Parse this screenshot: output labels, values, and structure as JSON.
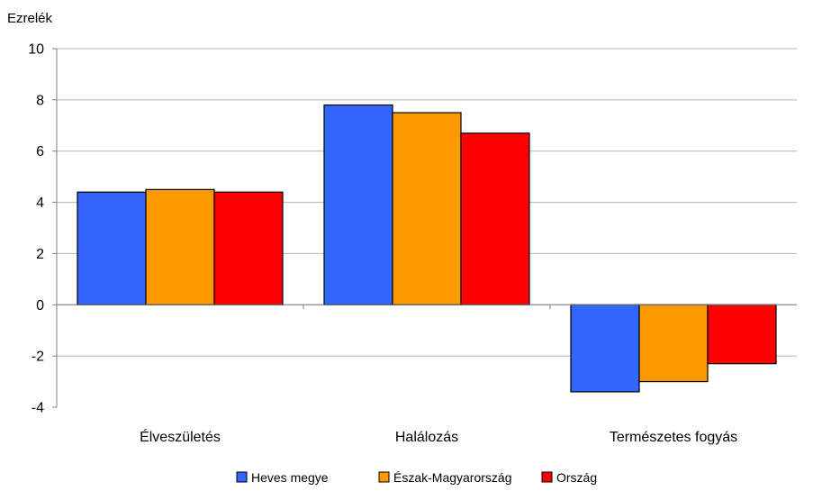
{
  "chart_data": {
    "type": "bar",
    "title": "",
    "xlabel": "",
    "ylabel": "Ezrelék",
    "ylim": [
      -4,
      10
    ],
    "yticks": [
      10,
      8,
      6,
      4,
      2,
      0,
      -2,
      -4
    ],
    "grid": true,
    "legend_position": "bottom",
    "categories": [
      "Élveszületés",
      "Halálozás",
      "Természetes fogyás"
    ],
    "series": [
      {
        "name": "Heves megye",
        "color": "#3366ff",
        "values": [
          4.4,
          7.8,
          -3.4
        ]
      },
      {
        "name": "Észak-Magyarország",
        "color": "#ff9900",
        "values": [
          4.5,
          7.5,
          -3.0
        ]
      },
      {
        "name": "Ország",
        "color": "#ff0000",
        "values": [
          4.4,
          6.7,
          -2.3
        ]
      }
    ]
  }
}
